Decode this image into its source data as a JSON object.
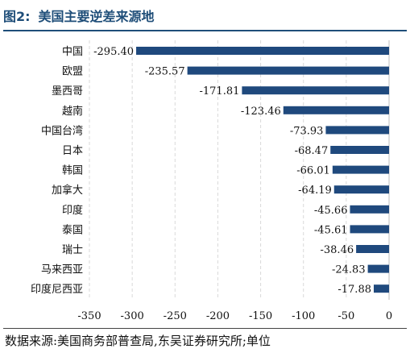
{
  "header": {
    "figure_label": "图2:",
    "title": "美国主要逆差来源地"
  },
  "source_note": "数据来源:美国商务部普查局,东吴证券研究所;单位",
  "colors": {
    "bar": "#1f497d",
    "title": "#1f4e79",
    "grid": "#d9d9d9"
  },
  "chart_data": {
    "type": "bar",
    "orientation": "horizontal",
    "title": "",
    "xlabel": "",
    "ylabel": "",
    "categories": [
      "中国",
      "欧盟",
      "墨西哥",
      "越南",
      "中国台湾",
      "日本",
      "韩国",
      "加拿大",
      "印度",
      "泰国",
      "瑞士",
      "马来西亚",
      "印度尼西亚"
    ],
    "values": [
      -295.4,
      -235.57,
      -171.81,
      -123.46,
      -73.93,
      -68.47,
      -66.01,
      -64.19,
      -45.66,
      -45.61,
      -38.46,
      -24.83,
      -17.88
    ],
    "data_labels": [
      "-295.40",
      "-235.57",
      "-171.81",
      "-123.46",
      "-73.93",
      "-68.47",
      "-66.01",
      "-64.19",
      "-45.66",
      "-45.61",
      "-38.46",
      "-24.83",
      "-17.88"
    ],
    "xlim": [
      -350,
      0
    ],
    "xticks": [
      -350,
      -300,
      -250,
      -200,
      -150,
      -100,
      -50,
      0
    ],
    "xtick_labels": [
      "-350",
      "-300",
      "-250",
      "-200",
      "-150",
      "-100",
      "-50",
      "0"
    ],
    "grid": "vertical-dashed",
    "legend": "none"
  }
}
